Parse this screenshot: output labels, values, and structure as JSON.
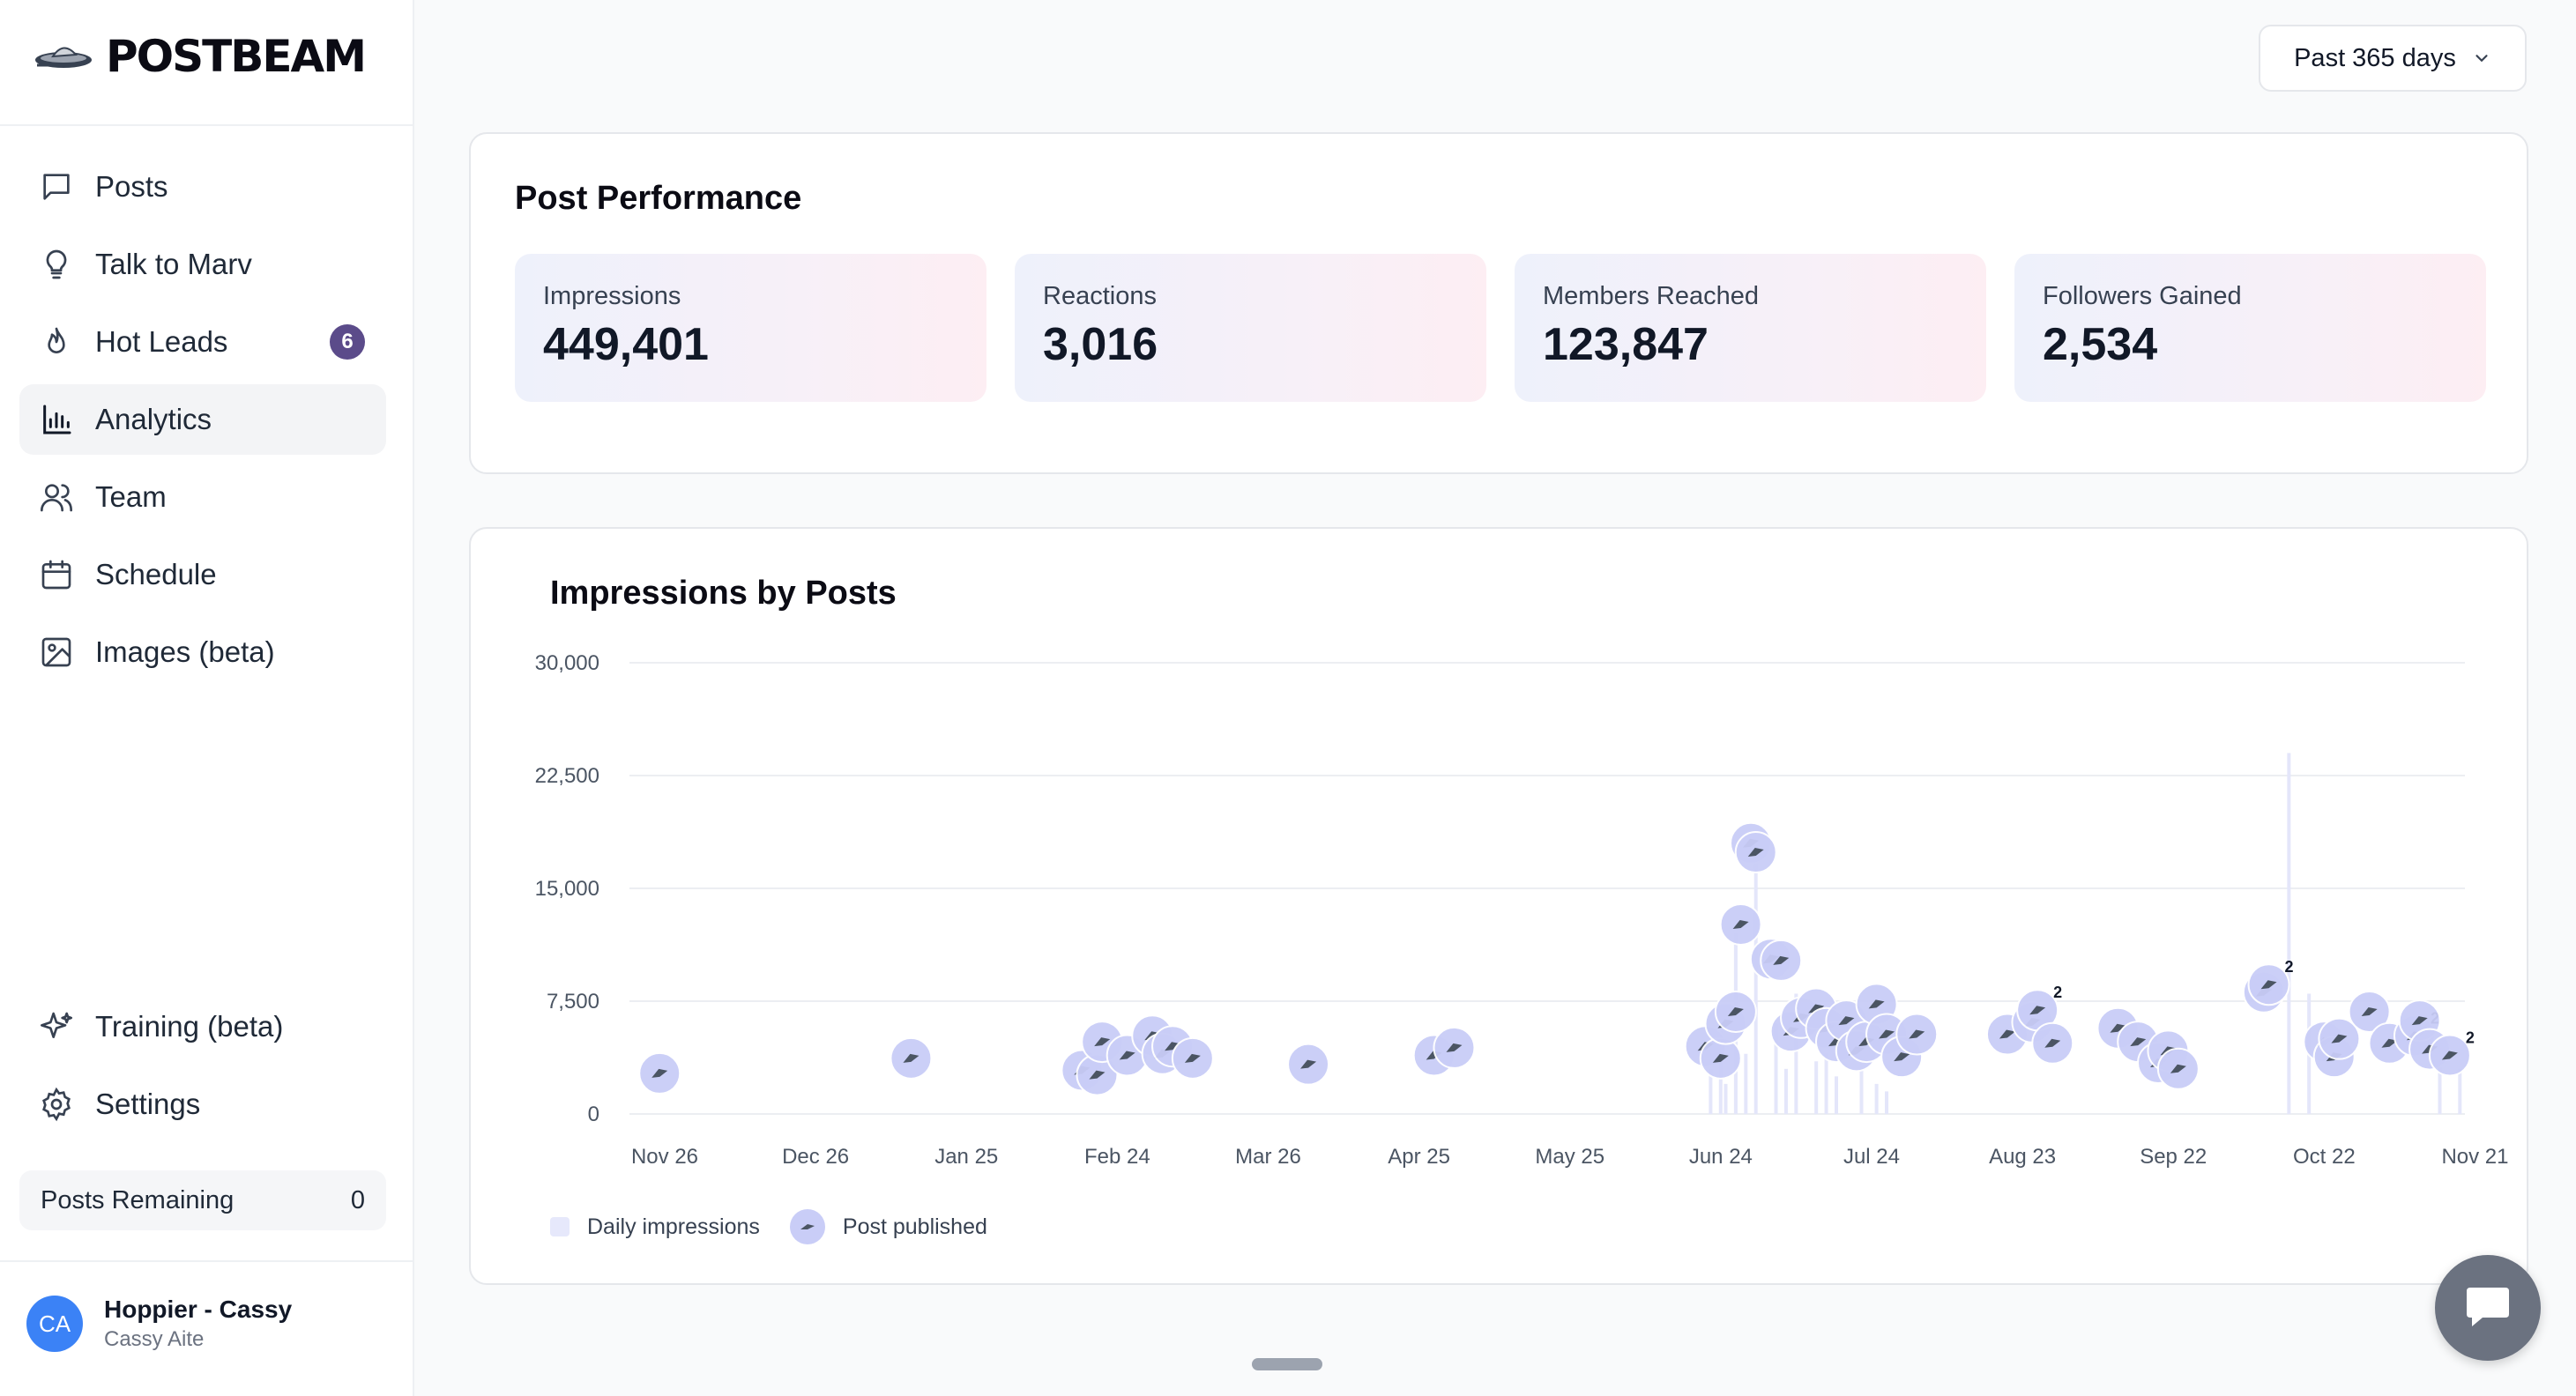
{
  "brand": {
    "name": "POSTBEAM"
  },
  "nav": {
    "items": [
      {
        "label": "Posts",
        "icon": "message-icon"
      },
      {
        "label": "Talk to Marv",
        "icon": "lightbulb-icon"
      },
      {
        "label": "Hot Leads",
        "icon": "flame-icon",
        "badge": "6"
      },
      {
        "label": "Analytics",
        "icon": "bar-chart-icon",
        "active": true
      },
      {
        "label": "Team",
        "icon": "users-icon"
      },
      {
        "label": "Schedule",
        "icon": "calendar-icon"
      },
      {
        "label": "Images (beta)",
        "icon": "image-icon"
      }
    ],
    "bottom": [
      {
        "label": "Training (beta)",
        "icon": "sparkles-icon"
      },
      {
        "label": "Settings",
        "icon": "gear-icon"
      }
    ]
  },
  "posts_remaining": {
    "label": "Posts Remaining",
    "value": "0"
  },
  "user": {
    "initials": "CA",
    "name": "Hoppier - Cassy",
    "sub": "Cassy Aite"
  },
  "range": {
    "label": "Past 365 days"
  },
  "performance": {
    "title": "Post Performance",
    "stats": [
      {
        "label": "Impressions",
        "value": "449,401"
      },
      {
        "label": "Reactions",
        "value": "3,016"
      },
      {
        "label": "Members Reached",
        "value": "123,847"
      },
      {
        "label": "Followers Gained",
        "value": "2,534"
      }
    ]
  },
  "legend": {
    "daily": "Daily impressions",
    "post": "Post published"
  },
  "colors": {
    "accent": "#5b4b8a",
    "bar": "#e6e8fb",
    "marker": "#c9cdf7",
    "avatar": "#3b82f6"
  },
  "chart_data": {
    "type": "bar",
    "title": "Impressions by Posts",
    "ylim": [
      0,
      30000
    ],
    "yticks": [
      "30,000",
      "22,500",
      "15,000",
      "7,500",
      "0"
    ],
    "ytick_values": [
      30000,
      22500,
      15000,
      7500,
      0
    ],
    "xticks": [
      "Nov 26",
      "Dec 26",
      "Jan 25",
      "Feb 24",
      "Mar 26",
      "Apr 25",
      "May 25",
      "Jun 24",
      "Jul 24",
      "Aug 23",
      "Sep 22",
      "Oct 22",
      "Nov 21"
    ],
    "series": [
      {
        "name": "Daily impressions",
        "type": "bar",
        "x_day": [
          215,
          217,
          218,
          220,
          222,
          224,
          228,
          230,
          232,
          236,
          238,
          240,
          245,
          248,
          250,
          330,
          334,
          360,
          364
        ],
        "values": [
          3000,
          5500,
          2000,
          12000,
          4000,
          17500,
          6000,
          3000,
          8000,
          3500,
          4000,
          2500,
          3000,
          2000,
          1500,
          24000,
          8000,
          4000,
          3000
        ]
      },
      {
        "name": "Post published",
        "type": "marker",
        "x_day": [
          6,
          56,
          90,
          93,
          94,
          99,
          104,
          106,
          108,
          112,
          135,
          160,
          164,
          214,
          217,
          218,
          220,
          221,
          223,
          224,
          227,
          229,
          231,
          233,
          236,
          238,
          240,
          242,
          244,
          246,
          248,
          250,
          253,
          256,
          274,
          279,
          280,
          283,
          296,
          300,
          304,
          306,
          308,
          325,
          326,
          337,
          339,
          340,
          346,
          350,
          355,
          356,
          358,
          362
        ],
        "values": [
          2700,
          3700,
          2900,
          2600,
          4800,
          3900,
          5200,
          4000,
          4500,
          3700,
          3300,
          3900,
          4400,
          4500,
          3700,
          6000,
          6800,
          12600,
          18000,
          17400,
          10300,
          10200,
          5500,
          6400,
          7000,
          5700,
          4800,
          6200,
          4200,
          4800,
          7300,
          5300,
          3800,
          5300,
          5300,
          6100,
          6900,
          4700,
          5700,
          4800,
          3400,
          4200,
          3000,
          8100,
          8600,
          4800,
          3800,
          5000,
          6800,
          4700,
          5200,
          6200,
          4300,
          3900
        ],
        "labels": [
          "",
          "",
          "",
          "",
          "",
          "",
          "",
          "",
          "",
          "",
          "",
          "",
          "",
          "",
          "",
          "",
          "",
          "",
          "",
          "",
          "",
          "",
          "",
          "",
          "",
          "",
          "",
          "",
          "",
          "",
          "",
          "",
          "",
          "",
          "",
          "",
          "2",
          "",
          "",
          "",
          "",
          "",
          "",
          "",
          "2",
          "",
          "",
          "",
          "",
          "",
          "2",
          "",
          "",
          "2"
        ]
      }
    ],
    "grid": true
  }
}
